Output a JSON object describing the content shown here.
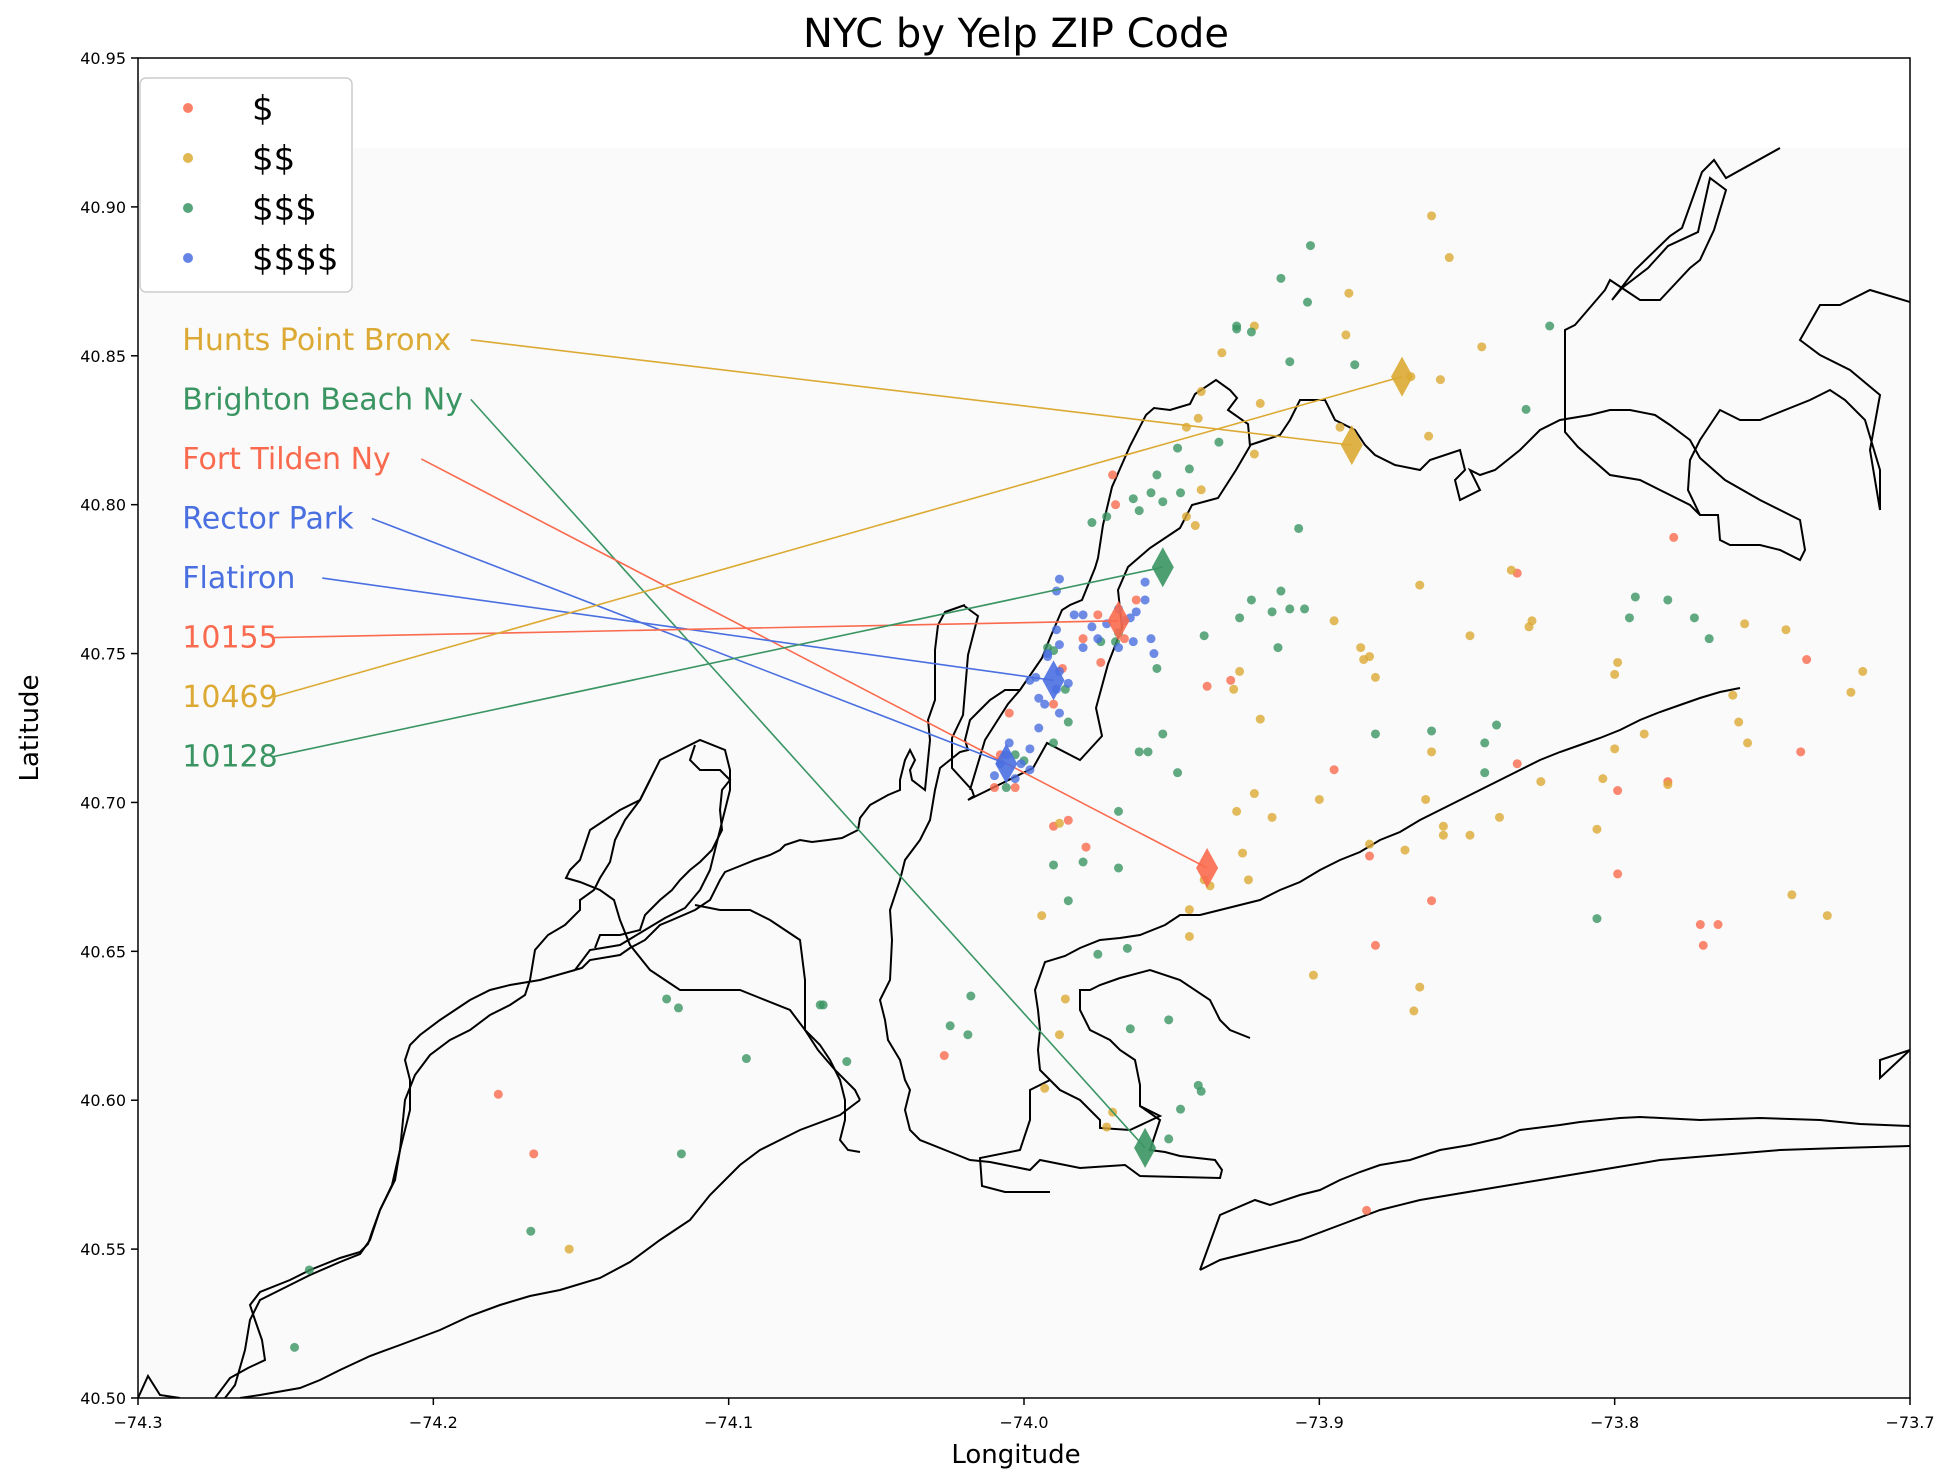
{
  "chart_data": {
    "type": "scatter",
    "title": "NYC by Yelp ZIP Code",
    "xlabel": "Longitude",
    "ylabel": "Latitude",
    "xlim": [
      -74.3,
      -73.7
    ],
    "ylim": [
      40.5,
      40.95
    ],
    "xticks": [
      -74.3,
      -74.2,
      -74.1,
      -74.0,
      -73.9,
      -73.8,
      -73.7
    ],
    "xtick_labels": [
      "−74.3",
      "−74.2",
      "−74.1",
      "−74.0",
      "−73.9",
      "−73.8",
      "−73.7"
    ],
    "yticks": [
      40.5,
      40.55,
      40.6,
      40.65,
      40.7,
      40.75,
      40.8,
      40.85,
      40.9,
      40.95
    ],
    "ytick_labels": [
      "40.50",
      "40.55",
      "40.60",
      "40.65",
      "40.70",
      "40.75",
      "40.80",
      "40.85",
      "40.90",
      "40.95"
    ],
    "grid": false,
    "legend_position": "top-left",
    "colors": {
      "$": "#fa6a4e",
      "$$": "#dcaa34",
      "$$$": "#3a9563",
      "$$$$": "#4a6fe0"
    },
    "series": [
      {
        "name": "$",
        "color": "#fa6a4e",
        "points": [
          [
            -73.97,
            40.81
          ],
          [
            -73.969,
            40.8
          ],
          [
            -74.003,
            40.705
          ],
          [
            -74.01,
            40.705
          ],
          [
            -74.005,
            40.73
          ],
          [
            -73.98,
            40.755
          ],
          [
            -73.975,
            40.763
          ],
          [
            -73.985,
            40.694
          ],
          [
            -73.979,
            40.685
          ],
          [
            -73.99,
            40.692
          ],
          [
            -73.938,
            40.739
          ],
          [
            -73.93,
            40.741
          ],
          [
            -73.895,
            40.711
          ],
          [
            -73.883,
            40.682
          ],
          [
            -73.881,
            40.652
          ],
          [
            -73.862,
            40.667
          ],
          [
            -73.78,
            40.789
          ],
          [
            -73.833,
            40.777
          ],
          [
            -73.833,
            40.713
          ],
          [
            -73.799,
            40.704
          ],
          [
            -73.799,
            40.676
          ],
          [
            -73.782,
            40.707
          ],
          [
            -73.771,
            40.659
          ],
          [
            -73.765,
            40.659
          ],
          [
            -73.77,
            40.652
          ],
          [
            -73.735,
            40.748
          ],
          [
            -73.737,
            40.717
          ],
          [
            -74.027,
            40.615
          ],
          [
            -74.178,
            40.602
          ],
          [
            -74.166,
            40.582
          ],
          [
            -73.884,
            40.563
          ],
          [
            -73.966,
            40.755
          ],
          [
            -73.962,
            40.768
          ],
          [
            -73.974,
            40.747
          ],
          [
            -73.99,
            40.733
          ],
          [
            -73.987,
            40.745
          ],
          [
            -74.008,
            40.716
          ]
        ]
      },
      {
        "name": "$$",
        "color": "#dcaa34",
        "points": [
          [
            -73.862,
            40.897
          ],
          [
            -73.856,
            40.883
          ],
          [
            -73.89,
            40.871
          ],
          [
            -73.922,
            40.86
          ],
          [
            -73.891,
            40.857
          ],
          [
            -73.845,
            40.853
          ],
          [
            -73.933,
            40.851
          ],
          [
            -73.869,
            40.843
          ],
          [
            -73.859,
            40.842
          ],
          [
            -73.94,
            40.838
          ],
          [
            -73.92,
            40.834
          ],
          [
            -73.893,
            40.826
          ],
          [
            -73.941,
            40.829
          ],
          [
            -73.945,
            40.826
          ],
          [
            -73.863,
            40.823
          ],
          [
            -73.922,
            40.817
          ],
          [
            -73.94,
            40.805
          ],
          [
            -73.942,
            40.793
          ],
          [
            -73.945,
            40.796
          ],
          [
            -73.866,
            40.773
          ],
          [
            -73.835,
            40.778
          ],
          [
            -73.849,
            40.756
          ],
          [
            -73.829,
            40.759
          ],
          [
            -73.828,
            40.761
          ],
          [
            -73.895,
            40.761
          ],
          [
            -73.886,
            40.752
          ],
          [
            -73.883,
            40.749
          ],
          [
            -73.885,
            40.748
          ],
          [
            -73.881,
            40.742
          ],
          [
            -73.927,
            40.744
          ],
          [
            -73.929,
            40.738
          ],
          [
            -73.92,
            40.728
          ],
          [
            -73.922,
            40.703
          ],
          [
            -73.916,
            40.695
          ],
          [
            -73.928,
            40.697
          ],
          [
            -73.9,
            40.701
          ],
          [
            -73.862,
            40.717
          ],
          [
            -73.864,
            40.701
          ],
          [
            -73.858,
            40.692
          ],
          [
            -73.858,
            40.689
          ],
          [
            -73.839,
            40.695
          ],
          [
            -73.849,
            40.689
          ],
          [
            -73.871,
            40.684
          ],
          [
            -73.883,
            40.686
          ],
          [
            -73.926,
            40.683
          ],
          [
            -73.924,
            40.674
          ],
          [
            -73.937,
            40.672
          ],
          [
            -73.939,
            40.674
          ],
          [
            -73.944,
            40.664
          ],
          [
            -73.944,
            40.655
          ],
          [
            -73.994,
            40.662
          ],
          [
            -73.988,
            40.693
          ],
          [
            -73.986,
            40.634
          ],
          [
            -73.988,
            40.622
          ],
          [
            -73.993,
            40.604
          ],
          [
            -73.97,
            40.596
          ],
          [
            -73.972,
            40.591
          ],
          [
            -73.902,
            40.642
          ],
          [
            -73.868,
            40.63
          ],
          [
            -73.866,
            40.638
          ],
          [
            -73.8,
            40.743
          ],
          [
            -73.799,
            40.747
          ],
          [
            -73.8,
            40.718
          ],
          [
            -73.79,
            40.723
          ],
          [
            -73.782,
            40.706
          ],
          [
            -73.756,
            40.76
          ],
          [
            -73.742,
            40.758
          ],
          [
            -73.76,
            40.736
          ],
          [
            -73.758,
            40.727
          ],
          [
            -73.755,
            40.72
          ],
          [
            -73.716,
            40.744
          ],
          [
            -73.72,
            40.737
          ],
          [
            -73.74,
            40.669
          ],
          [
            -73.728,
            40.662
          ],
          [
            -73.804,
            40.708
          ],
          [
            -73.806,
            40.691
          ],
          [
            -73.825,
            40.707
          ],
          [
            -74.154,
            40.55
          ]
        ]
      },
      {
        "name": "$$$",
        "color": "#3a9563",
        "points": [
          [
            -73.903,
            40.887
          ],
          [
            -73.913,
            40.876
          ],
          [
            -73.904,
            40.868
          ],
          [
            -73.928,
            40.86
          ],
          [
            -73.923,
            40.858
          ],
          [
            -73.928,
            40.859
          ],
          [
            -73.822,
            40.86
          ],
          [
            -73.91,
            40.848
          ],
          [
            -73.888,
            40.847
          ],
          [
            -73.83,
            40.832
          ],
          [
            -73.948,
            40.819
          ],
          [
            -73.934,
            40.821
          ],
          [
            -73.955,
            40.81
          ],
          [
            -73.944,
            40.812
          ],
          [
            -73.947,
            40.804
          ],
          [
            -73.957,
            40.804
          ],
          [
            -73.963,
            40.802
          ],
          [
            -73.961,
            40.798
          ],
          [
            -73.972,
            40.796
          ],
          [
            -73.977,
            40.794
          ],
          [
            -73.953,
            40.801
          ],
          [
            -73.907,
            40.792
          ],
          [
            -73.905,
            40.765
          ],
          [
            -73.913,
            40.771
          ],
          [
            -73.91,
            40.765
          ],
          [
            -73.916,
            40.764
          ],
          [
            -73.923,
            40.768
          ],
          [
            -73.927,
            40.762
          ],
          [
            -73.914,
            40.752
          ],
          [
            -73.939,
            40.756
          ],
          [
            -73.955,
            40.745
          ],
          [
            -73.969,
            40.754
          ],
          [
            -73.974,
            40.754
          ],
          [
            -73.968,
            40.757
          ],
          [
            -73.99,
            40.751
          ],
          [
            -73.992,
            40.752
          ],
          [
            -73.986,
            40.738
          ],
          [
            -73.985,
            40.727
          ],
          [
            -73.99,
            40.72
          ],
          [
            -74.0,
            40.714
          ],
          [
            -74.006,
            40.705
          ],
          [
            -74.003,
            40.716
          ],
          [
            -73.953,
            40.723
          ],
          [
            -73.961,
            40.717
          ],
          [
            -73.958,
            40.717
          ],
          [
            -73.948,
            40.71
          ],
          [
            -73.968,
            40.697
          ],
          [
            -73.985,
            40.667
          ],
          [
            -73.99,
            40.679
          ],
          [
            -73.98,
            40.68
          ],
          [
            -73.968,
            40.678
          ],
          [
            -73.975,
            40.649
          ],
          [
            -73.965,
            40.651
          ],
          [
            -73.964,
            40.624
          ],
          [
            -73.951,
            40.627
          ],
          [
            -73.94,
            40.603
          ],
          [
            -73.941,
            40.605
          ],
          [
            -73.947,
            40.597
          ],
          [
            -73.951,
            40.587
          ],
          [
            -73.862,
            40.724
          ],
          [
            -73.844,
            40.72
          ],
          [
            -73.84,
            40.726
          ],
          [
            -73.844,
            40.71
          ],
          [
            -73.881,
            40.723
          ],
          [
            -73.806,
            40.661
          ],
          [
            -73.795,
            40.762
          ],
          [
            -73.782,
            40.768
          ],
          [
            -73.773,
            40.762
          ],
          [
            -73.768,
            40.755
          ],
          [
            -73.793,
            40.769
          ],
          [
            -74.025,
            40.625
          ],
          [
            -74.018,
            40.635
          ],
          [
            -74.019,
            40.622
          ],
          [
            -74.121,
            40.634
          ],
          [
            -74.117,
            40.631
          ],
          [
            -74.068,
            40.632
          ],
          [
            -74.069,
            40.632
          ],
          [
            -74.094,
            40.614
          ],
          [
            -74.06,
            40.613
          ],
          [
            -74.116,
            40.582
          ],
          [
            -74.167,
            40.556
          ],
          [
            -74.242,
            40.543
          ],
          [
            -74.247,
            40.517
          ]
        ]
      },
      {
        "name": "$$$$",
        "color": "#4a6fe0",
        "points": [
          [
            -73.988,
            40.775
          ],
          [
            -73.989,
            40.771
          ],
          [
            -73.959,
            40.774
          ],
          [
            -73.968,
            40.765
          ],
          [
            -73.962,
            40.764
          ],
          [
            -73.964,
            40.762
          ],
          [
            -73.959,
            40.768
          ],
          [
            -73.98,
            40.763
          ],
          [
            -73.983,
            40.763
          ],
          [
            -73.989,
            40.758
          ],
          [
            -73.988,
            40.753
          ],
          [
            -73.992,
            40.75
          ],
          [
            -73.977,
            40.759
          ],
          [
            -73.975,
            40.755
          ],
          [
            -73.98,
            40.752
          ],
          [
            -73.968,
            40.752
          ],
          [
            -73.963,
            40.754
          ],
          [
            -73.957,
            40.755
          ],
          [
            -73.966,
            40.761
          ],
          [
            -73.972,
            40.76
          ],
          [
            -73.996,
            40.742
          ],
          [
            -73.998,
            40.741
          ],
          [
            -73.988,
            40.744
          ],
          [
            -73.985,
            40.74
          ],
          [
            -73.989,
            40.738
          ],
          [
            -73.992,
            40.749
          ],
          [
            -73.995,
            40.735
          ],
          [
            -73.993,
            40.733
          ],
          [
            -73.995,
            40.725
          ],
          [
            -73.998,
            40.718
          ],
          [
            -74.001,
            40.713
          ],
          [
            -73.998,
            40.711
          ],
          [
            -74.006,
            40.716
          ],
          [
            -74.01,
            40.709
          ],
          [
            -74.008,
            40.713
          ],
          [
            -74.003,
            40.708
          ],
          [
            -74.005,
            40.72
          ],
          [
            -73.988,
            40.73
          ],
          [
            -73.956,
            40.75
          ]
        ]
      }
    ],
    "highlights": [
      {
        "label": "Hunts Point Bronx",
        "color": "#dcaa34",
        "lon": -73.889,
        "lat": 40.82,
        "label_lon": -74.285,
        "label_lat": 40.852
      },
      {
        "label": "Brighton Beach Ny",
        "color": "#3a9563",
        "lon": -73.959,
        "lat": 40.584,
        "label_lon": -74.285,
        "label_lat": 40.832
      },
      {
        "label": "Fort Tilden Ny",
        "color": "#fa6a4e",
        "lon": -73.938,
        "lat": 40.678,
        "label_lon": -74.285,
        "label_lat": 40.812
      },
      {
        "label": "Rector Park",
        "color": "#4a6fe0",
        "lon": -74.006,
        "lat": 40.713,
        "label_lon": -74.285,
        "label_lat": 40.792
      },
      {
        "label": "Flatiron",
        "color": "#4a6fe0",
        "lon": -73.99,
        "lat": 40.741,
        "label_lon": -74.285,
        "label_lat": 40.772
      },
      {
        "label": "10155",
        "color": "#fa6a4e",
        "lon": -73.968,
        "lat": 40.761,
        "label_lon": -74.285,
        "label_lat": 40.752
      },
      {
        "label": "10469",
        "color": "#dcaa34",
        "lon": -73.872,
        "lat": 40.843,
        "label_lon": -74.285,
        "label_lat": 40.732
      },
      {
        "label": "10128",
        "color": "#3a9563",
        "lon": -73.953,
        "lat": 40.779,
        "label_lon": -74.285,
        "label_lat": 40.712
      }
    ]
  }
}
